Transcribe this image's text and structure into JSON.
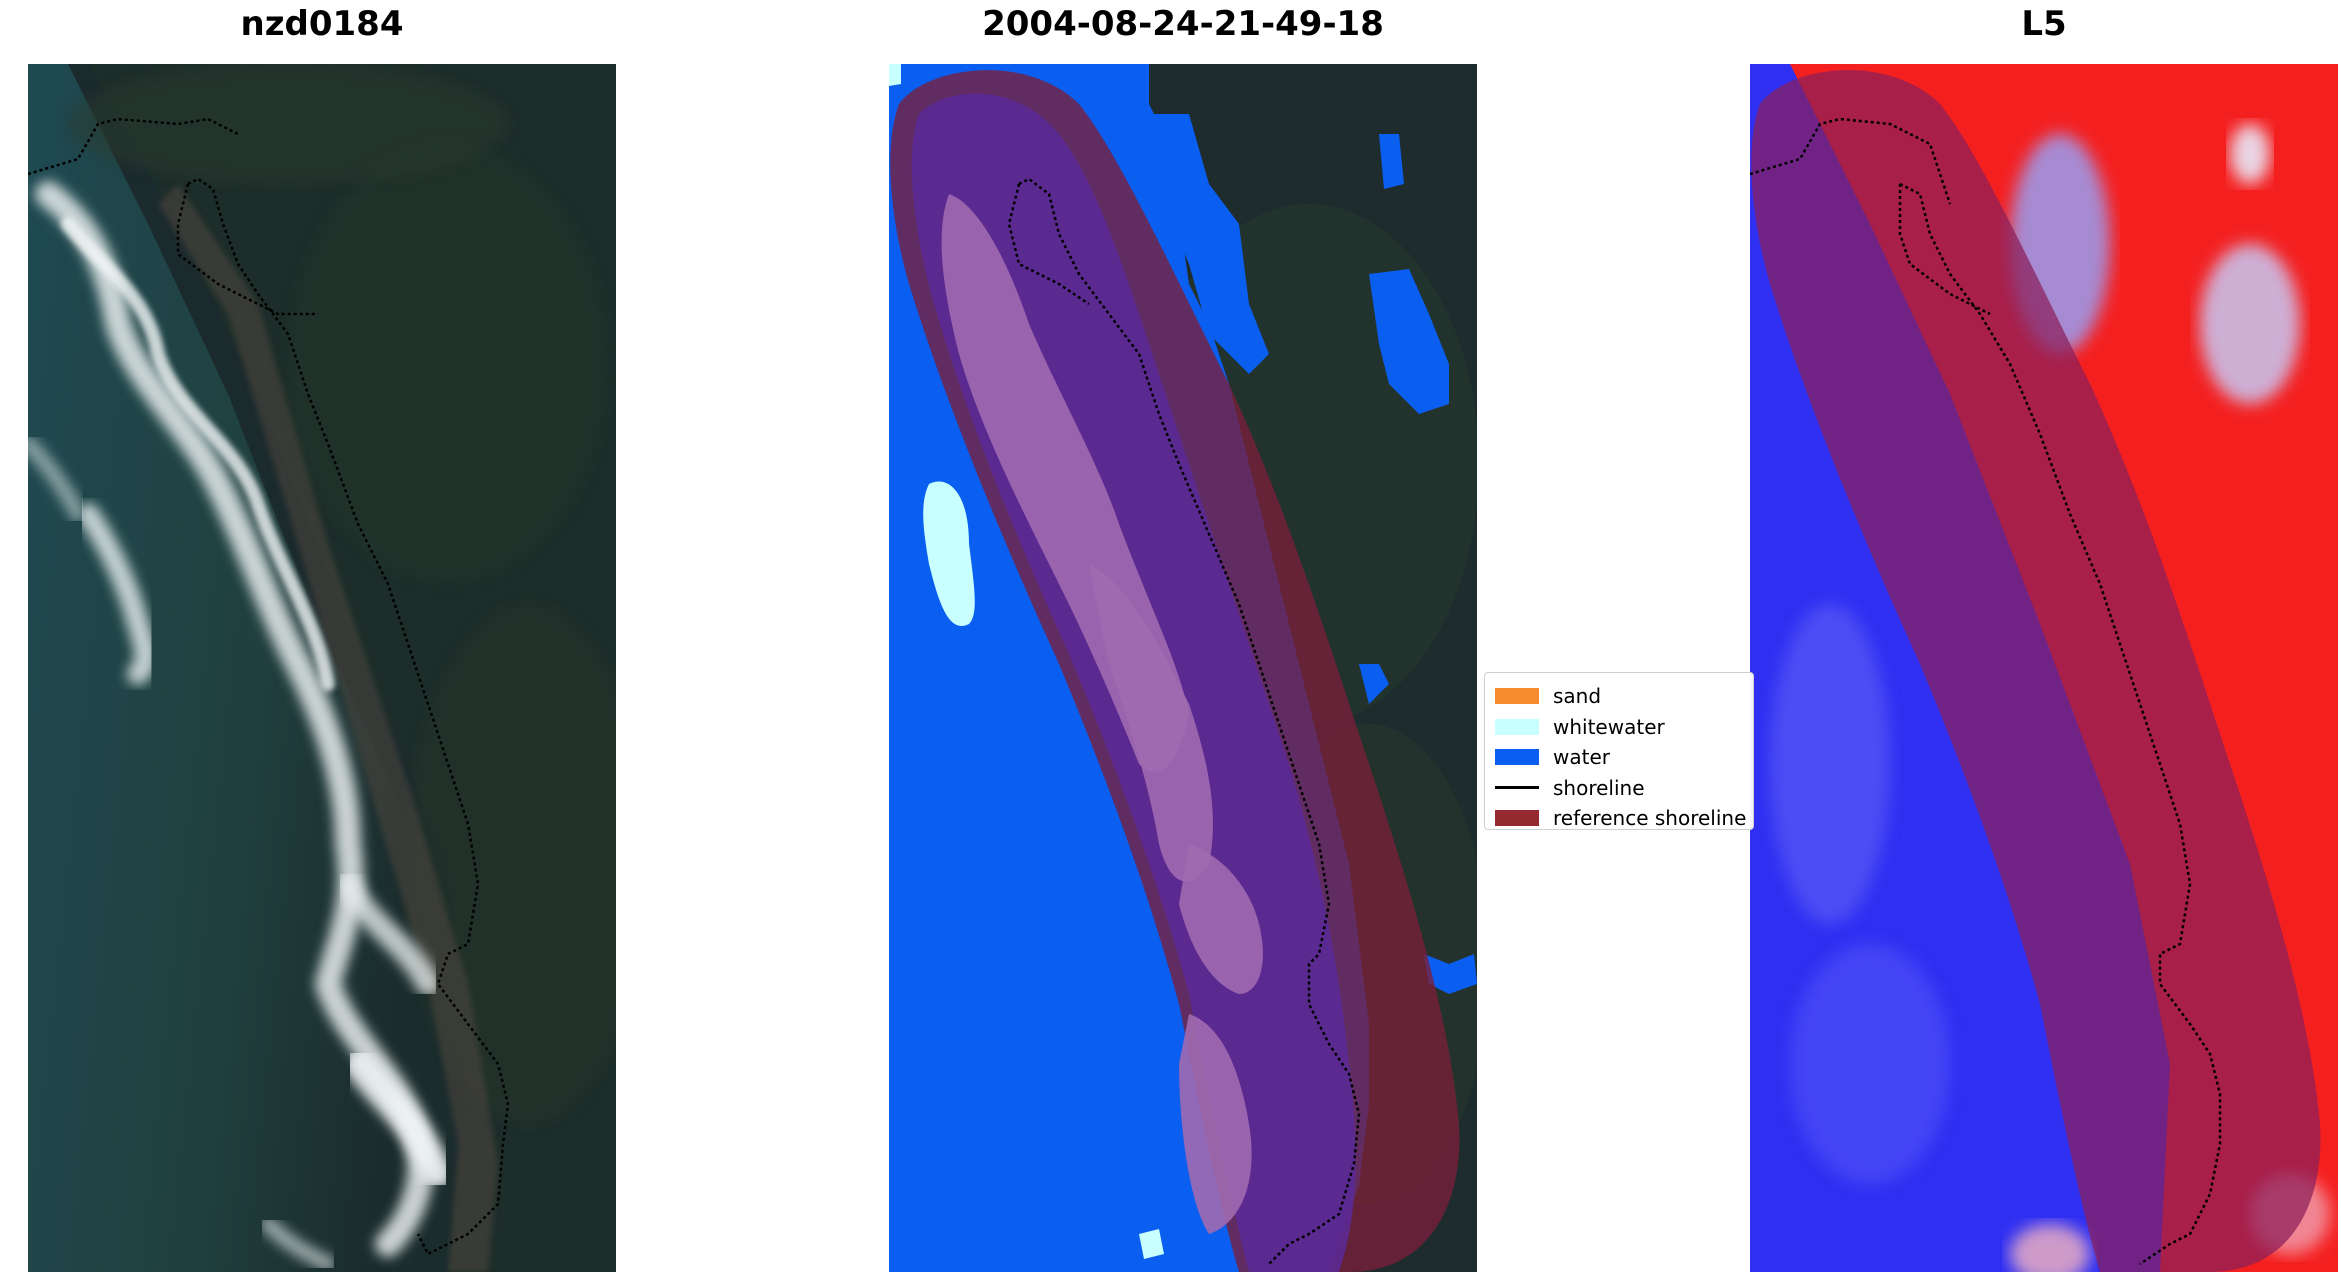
{
  "panels": [
    {
      "title": "nzd0184",
      "kind": "rgb-image"
    },
    {
      "title": "2004-08-24-21-49-18",
      "kind": "classified-image"
    },
    {
      "title": "L5",
      "kind": "index-image"
    }
  ],
  "legend": {
    "items": [
      {
        "label": "sand",
        "color": "#f58a2e",
        "type": "patch"
      },
      {
        "label": "whitewater",
        "color": "#c8ffff",
        "type": "patch"
      },
      {
        "label": "water",
        "color": "#0a5ef0",
        "type": "patch"
      },
      {
        "label": "shoreline",
        "color": "#000000",
        "type": "line"
      },
      {
        "label": "reference shoreline",
        "color": "#942a2f",
        "type": "patch"
      }
    ]
  }
}
